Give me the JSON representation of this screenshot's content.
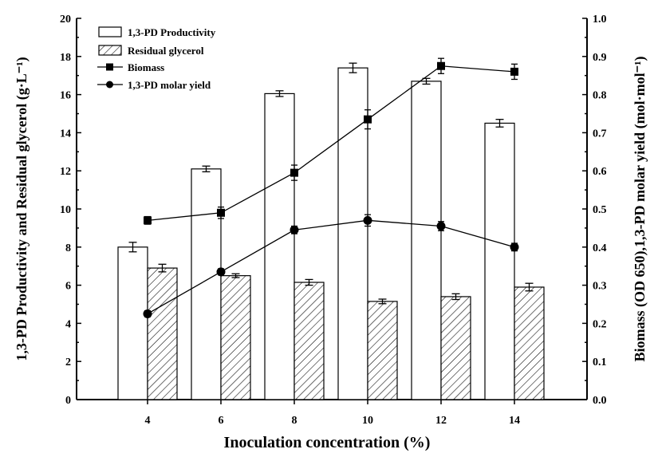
{
  "chart_data": {
    "type": "bar",
    "categories": [
      "4",
      "6",
      "8",
      "10",
      "12",
      "14"
    ],
    "xlabel": "Inoculation concentration (%)",
    "ylabel_left": "1,3-PD Productivity and Residual glycerol (g·L⁻¹)",
    "ylabel_right": "Biomass (OD 650),1,3-PD molar yield (mol·mol⁻¹)",
    "ylim_left": [
      0,
      20
    ],
    "ylim_right": [
      0,
      1.0
    ],
    "yticks_left": [
      "0",
      "2",
      "4",
      "6",
      "8",
      "10",
      "12",
      "14",
      "16",
      "18",
      "20"
    ],
    "yticks_right": [
      "0.0",
      "0.1",
      "0.2",
      "0.3",
      "0.4",
      "0.5",
      "0.6",
      "0.7",
      "0.8",
      "0.9",
      "1.0"
    ],
    "legend_position": "top-left",
    "grid": false,
    "series": [
      {
        "name": "1,3-PD Productivity",
        "kind": "bar",
        "fill": "open",
        "axis": "left",
        "values": [
          8.0,
          12.1,
          16.05,
          17.4,
          16.7,
          14.5
        ],
        "errors": [
          0.25,
          0.15,
          0.15,
          0.25,
          0.15,
          0.2
        ]
      },
      {
        "name": "Residual glycerol",
        "kind": "bar",
        "fill": "hatched",
        "axis": "left",
        "values": [
          6.9,
          6.5,
          6.15,
          5.15,
          5.4,
          5.9
        ],
        "errors": [
          0.2,
          0.1,
          0.15,
          0.12,
          0.15,
          0.2
        ]
      },
      {
        "name": "Biomass",
        "kind": "line",
        "marker": "square",
        "axis": "right",
        "values": [
          0.47,
          0.49,
          0.595,
          0.735,
          0.875,
          0.86
        ],
        "errors": [
          0.01,
          0.015,
          0.02,
          0.025,
          0.02,
          0.02
        ]
      },
      {
        "name": "1,3-PD molar yield",
        "kind": "line",
        "marker": "circle",
        "axis": "right",
        "values": [
          0.225,
          0.335,
          0.445,
          0.47,
          0.455,
          0.4
        ],
        "errors": [
          0.008,
          0.008,
          0.01,
          0.015,
          0.012,
          0.01
        ]
      }
    ]
  }
}
